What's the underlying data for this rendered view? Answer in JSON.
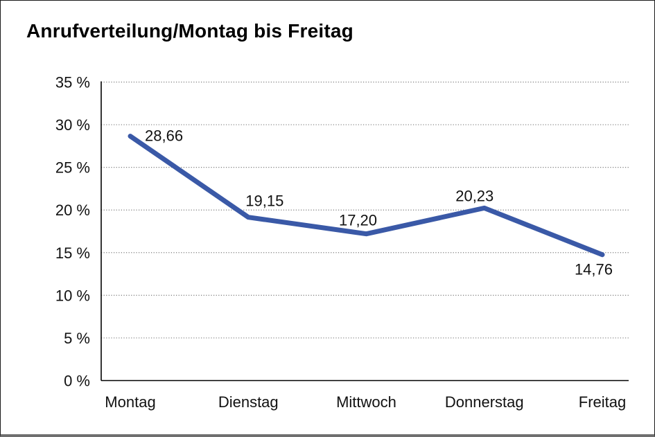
{
  "page": {
    "background": "#ffffff",
    "frame_border_color": "#1a1a1a",
    "frame_bottom_bar_color": "#6f6f6f"
  },
  "chart_data": {
    "type": "line",
    "title": "Anrufverteilung/Montag bis Freitag",
    "categories": [
      "Montag",
      "Dienstag",
      "Mittwoch",
      "Donnerstag",
      "Freitag"
    ],
    "values": [
      28.66,
      19.15,
      17.2,
      20.23,
      14.76
    ],
    "data_labels": [
      "28,66",
      "19,15",
      "17,20",
      "20,23",
      "14,76"
    ],
    "xlabel": "",
    "ylabel": "",
    "ylim": [
      0,
      35
    ],
    "y_ticks": [
      {
        "value": 35,
        "label": "35 %"
      },
      {
        "value": 30,
        "label": "30 %"
      },
      {
        "value": 25,
        "label": "25 %"
      },
      {
        "value": 20,
        "label": "20 %"
      },
      {
        "value": 15,
        "label": "15 %"
      },
      {
        "value": 10,
        "label": "10 %"
      },
      {
        "value": 5,
        "label": "5 %"
      },
      {
        "value": 0,
        "label": "0 %"
      }
    ],
    "grid": {
      "horizontal": true,
      "style": "dotted",
      "color": "#7a7a7a"
    },
    "legend": "none",
    "series_color": "#3A59A7",
    "axis_color": "#000000",
    "text_color": "#111111"
  }
}
